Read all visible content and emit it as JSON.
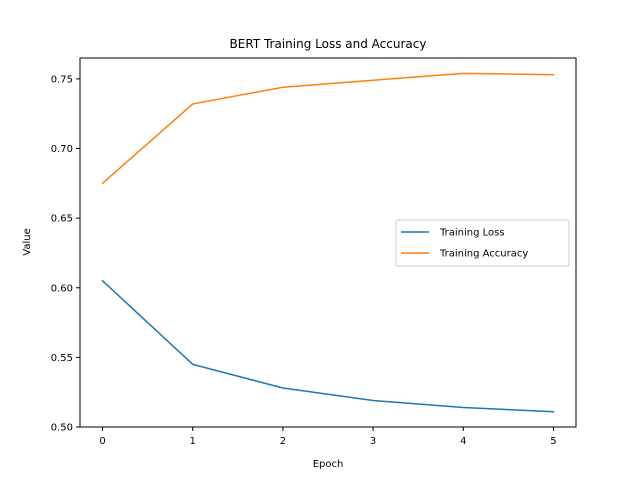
{
  "chart_data": {
    "type": "line",
    "title": "BERT Training Loss and Accuracy",
    "xlabel": "Epoch",
    "ylabel": "Value",
    "x": [
      0,
      1,
      2,
      3,
      4,
      5
    ],
    "xlim": [
      -0.25,
      5.25
    ],
    "ylim": [
      0.5,
      0.765
    ],
    "xticks": [
      0,
      1,
      2,
      3,
      4,
      5
    ],
    "yticks": [
      0.5,
      0.55,
      0.6,
      0.65,
      0.7,
      0.75
    ],
    "ytick_labels": [
      "0.50",
      "0.55",
      "0.60",
      "0.65",
      "0.70",
      "0.75"
    ],
    "grid": false,
    "legend_position": "center-right",
    "series": [
      {
        "name": "Training Loss",
        "color": "#1f77b4",
        "values": [
          0.605,
          0.545,
          0.528,
          0.519,
          0.514,
          0.511
        ]
      },
      {
        "name": "Training Accuracy",
        "color": "#ff7f0e",
        "values": [
          0.675,
          0.732,
          0.744,
          0.749,
          0.754,
          0.753
        ]
      }
    ]
  }
}
